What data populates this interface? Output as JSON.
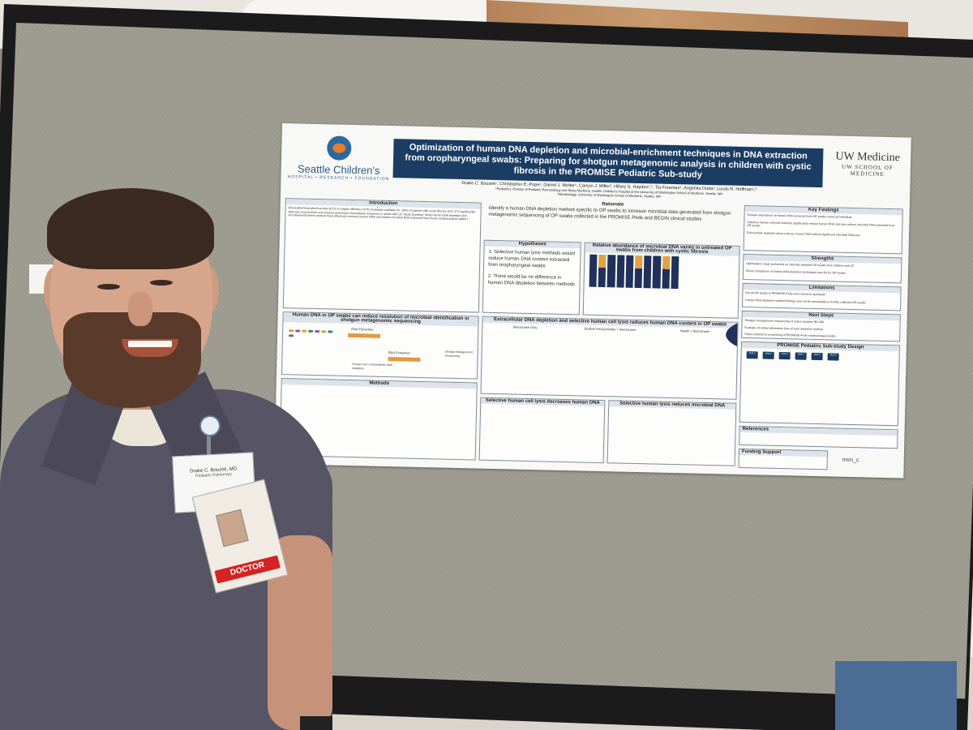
{
  "poster": {
    "org_left": "Seattle Children's",
    "org_left_sub": "HOSPITAL • RESEARCH • FOUNDATION",
    "title": "Optimization of human DNA depletion and microbial-enrichment techniques in DNA extraction from oropharyngeal swabs: Preparing for shotgun metagenomic analysis in children with cystic fibrosis in the PROMISE Pediatric Sub-study",
    "authors": "Drake C. Bouzek¹, Christopher E. Pope¹, Daniel J. Wolter¹, Carson J. Miller², Hillary S. Hayden¹,², Tia Freeman¹, Angshita Dutta¹, Lucas R. Hoffman¹,²",
    "affiliation1": "¹Pediatrics, Division of Pediatric Pulmonology and Sleep Medicine, Seattle Children's Hospital at the University of Washington School of Medicine, Seattle, WA",
    "affiliation2": "²Microbiology, University of Washington School of Medicine, Seattle, WA",
    "org_right": "UW Medicine",
    "org_right_sub": "UW SCHOOL OF MEDICINE",
    "introduction_head": "Introduction",
    "introduction_text": "Elexacaftor/tezacaftor/ivacaftor (ETI) is a highly effective CFTR modulator available for ~90% of patients with cystic fibrosis (CF). ETI significantly improves lung function and reduces pulmonary exacerbation frequency in adults with CF. Study Question: What human DNA depletion and microbial-enrichment method most effectively removes human DNA and retains microbial DNA extracted from frozen oropharyngeal swabs?",
    "diagram_head": "Human DNA in OP swabs can reduce resolution of microbial identification in shotgun metagenomic sequencing",
    "diagram_labels": [
      "DNA Extraction",
      "DNA Extraction",
      "Human Cell + Extracellular DNA Depletion",
      "Shotgun Metagenomic Sequencing"
    ],
    "methods_head": "Methods",
    "rationale_head": "Rationale",
    "rationale_text": "Identify a human DNA depletion method specific to OP swabs to increase microbial data generated from shotgun metagenomic sequencing of OP swabs collected in the PROMISE-Peds and BEGIN clinical studies",
    "hypotheses_head": "Hypotheses",
    "hypotheses": [
      "1. Selective human lysis methods would reduce human DNA content extracted from oropharyngeal swabs",
      "2. There would be no difference in human DNA depletion between methods"
    ],
    "relabund_head": "Relative abundance of microbial DNA varies in untreated OP swabs from children with cystic fibrosis",
    "extracellular_head": "Extracellular DNA depletion and selective human cell lysis reduces human DNA content in OP swabs",
    "extracellular_sub": [
      "Benzonase Only",
      "Sodium Deoxycholate + Benzonase",
      "Steeth + Benzonase"
    ],
    "lysis_human_head": "Selective human cell lysis decreases human DNA",
    "lysis_microbial_head": "Selective human lysis reduces microbial DNA",
    "key_findings_head": "Key Findings",
    "key_findings": [
      "Relative abundance of human DNA extracted from OP swabs varies by individual",
      "Selective human cell lysis methods significantly reduce human DNA, but also reduce microbial DNA extracted from OP swabs",
      "Extracellular depletion alone reduces human DNA without significant microbial DNA loss"
    ],
    "strengths_head": "Strengths",
    "strengths": [
      "Optimization study performed on clinically obtained OP swabs from children with CF",
      "Direct comparison of human DNA depletion techniques specific for OP swabs"
    ],
    "limitations_head": "Limitations",
    "limitations": [
      "Not all OP swabs in PROMISE-Peds were stored in sputolysin",
      "Human DNA depletion method findings may not be translatable to freshly collected OP swabs"
    ],
    "next_steps_head": "Next Steps",
    "next_steps": [
      "Shotgun metagenomic sequencing of select samples (B1-B8)",
      "Evaluate microbial elimination bias of each depletion method",
      "Select method for processing of PROMISE-Peds oropharyngeal swabs"
    ],
    "design_head": "PROMISE Pediatric Sub-study Design",
    "visits": [
      "Visit 1",
      "Visit 2",
      "Visit 3",
      "Visit 4",
      "Visit 5",
      "Visit 6"
    ],
    "references_head": "References",
    "funding_head": "Funding Support",
    "footer_logo": "mim_c"
  },
  "badge": {
    "name": "Drake C. Bouzek, MD",
    "dept": "Pediatric Pulmonary",
    "role": "DOCTOR"
  },
  "colors": {
    "title_bar": "#1c3d63",
    "bar_dark": "#22315a",
    "bar_orange": "#e3a046",
    "doctor_tag": "#d52222"
  }
}
